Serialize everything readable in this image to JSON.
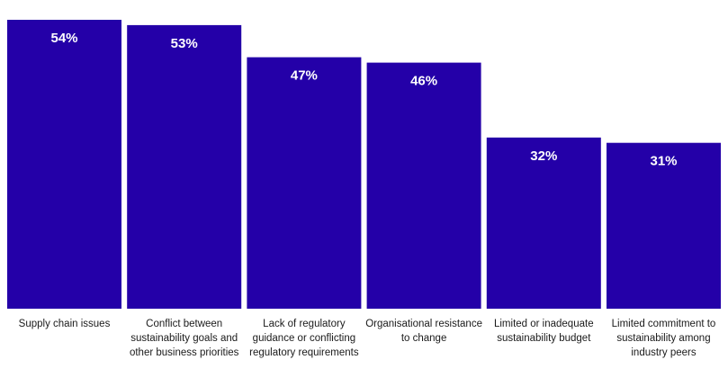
{
  "chart_data": {
    "type": "bar",
    "categories": [
      "Supply chain issues",
      "Conflict between sustainability goals and other business priorities",
      "Lack of regulatory guidance or conflicting regulatory requirements",
      "Organisational resistance to change",
      "Limited or inadequate sustainability budget",
      "Limited commitment to sustainability among industry peers"
    ],
    "values": [
      54,
      53,
      47,
      46,
      32,
      31
    ],
    "value_labels": [
      "54%",
      "53%",
      "47%",
      "46%",
      "32%",
      "31%"
    ],
    "unit": "%",
    "ylim": [
      0,
      54
    ],
    "bar_color": "#2400A8",
    "grid": false,
    "legend": "none",
    "title": "",
    "xlabel": "",
    "ylabel": ""
  }
}
